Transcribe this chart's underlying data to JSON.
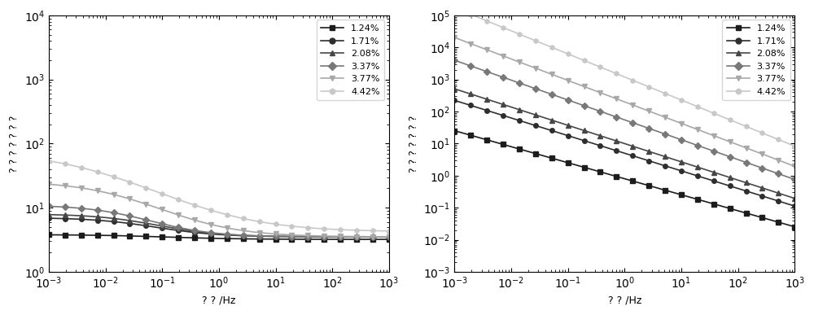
{
  "labels": [
    "1.24%",
    "1.71%",
    "2.08%",
    "3.37%",
    "3.77%",
    "4.42%"
  ],
  "colors": [
    "#1c1c1c",
    "#2e2e2e",
    "#464646",
    "#787878",
    "#a8a8a8",
    "#c8c8c8"
  ],
  "markers": [
    "s",
    "o",
    "^",
    "D",
    "v",
    "h"
  ],
  "freq_log_min": -3,
  "freq_log_max": 3,
  "xlabel": "? ? /Hz",
  "ylabel_left": "? ? ? ? ? ? ?",
  "ylabel_right": "? ? ? ? ? ? ?",
  "left_plot": {
    "y_at_low": [
      3.8,
      7.0,
      8.0,
      11.0,
      26.0,
      75.0
    ],
    "y_at_high": [
      3.2,
      3.5,
      3.5,
      3.5,
      3.5,
      4.2
    ],
    "transition_freq": [
      0.1,
      0.05,
      0.05,
      0.03,
      0.02,
      0.005
    ],
    "steepness": [
      1.5,
      1.8,
      1.8,
      1.8,
      1.5,
      1.2
    ]
  },
  "right_plot": {
    "A": [
      0.8,
      5.0,
      10.0,
      55.0,
      200.0,
      1200.0
    ],
    "slopes": [
      0.5,
      0.55,
      0.57,
      0.62,
      0.67,
      0.72
    ]
  }
}
